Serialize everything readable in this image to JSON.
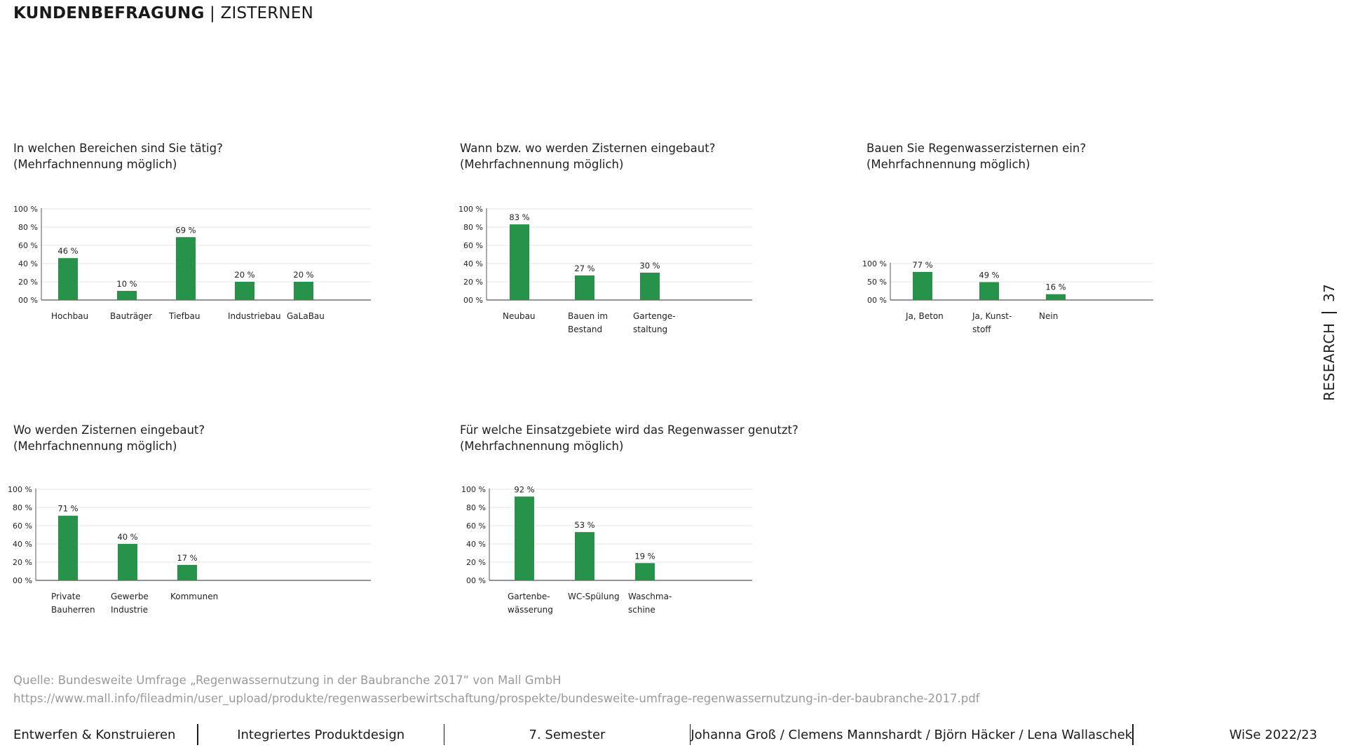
{
  "header": {
    "title_bold": "KUNDENBEFRAGUNG",
    "separator": " | ",
    "title_light": "ZISTERNEN"
  },
  "side": {
    "label": "RESEARCH",
    "page_number": "37"
  },
  "colors": {
    "bar": "#27934a",
    "grid": "#e5e5e5",
    "axis": "#555555"
  },
  "chart_data": [
    {
      "type": "bar",
      "title": "In welchen Bereichen sind Sie tätig?",
      "subtitle": "(Mehrfachnennung möglich)",
      "categories": [
        "Hochbau",
        "Bauträger",
        "Tiefbau",
        "Industriebau",
        "GaLaBau"
      ],
      "values": [
        46,
        10,
        69,
        20,
        20
      ],
      "data_labels": [
        "46 %",
        "10 %",
        "69 %",
        "20 %",
        "20 %"
      ],
      "ylim": [
        0,
        100
      ],
      "y_ticks": [
        0,
        20,
        40,
        60,
        80,
        100
      ],
      "y_tick_labels": [
        "00 %",
        "20 %",
        "40 %",
        "60 %",
        "80 %",
        "100 %"
      ],
      "grid": true
    },
    {
      "type": "bar",
      "title": "Wann bzw. wo werden Zisternen eingebaut?",
      "subtitle": "(Mehrfachnennung möglich)",
      "categories": [
        "Neubau",
        "Bauen im\nBestand",
        "Gartenge-\nstaltung"
      ],
      "values": [
        83,
        27,
        30
      ],
      "data_labels": [
        "83 %",
        "27 %",
        "30 %"
      ],
      "ylim": [
        0,
        100
      ],
      "y_ticks": [
        0,
        20,
        40,
        60,
        80,
        100
      ],
      "y_tick_labels": [
        "00 %",
        "20 %",
        "40 %",
        "60 %",
        "80 %",
        "100 %"
      ],
      "grid": true
    },
    {
      "type": "bar",
      "title": "Bauen Sie Regenwasserzisternen ein?",
      "subtitle": "(Mehrfachnennung möglich)",
      "categories": [
        "Ja, Beton",
        "Ja, Kunst-\nstoff",
        "Nein"
      ],
      "values": [
        77,
        49,
        16
      ],
      "data_labels": [
        "77 %",
        "49 %",
        "16 %"
      ],
      "ylim": [
        0,
        100
      ],
      "y_ticks": [
        0,
        50,
        100
      ],
      "y_tick_labels": [
        "00 %",
        "50 %",
        "100 %"
      ],
      "grid": true
    },
    {
      "type": "bar",
      "title": "Wo werden Zisternen eingebaut?",
      "subtitle": "(Mehrfachnennung möglich)",
      "categories": [
        "Private\nBauherren",
        "Gewerbe\nIndustrie",
        "Kommunen"
      ],
      "values": [
        71,
        40,
        17
      ],
      "data_labels": [
        "71 %",
        "40 %",
        "17 %"
      ],
      "ylim": [
        0,
        100
      ],
      "y_ticks": [
        0,
        20,
        40,
        60,
        80,
        100
      ],
      "y_tick_labels": [
        "00 %",
        "20 %",
        "40 %",
        "60 %",
        "80 %",
        "100 %"
      ],
      "grid": true
    },
    {
      "type": "bar",
      "title": "Für welche Einsatzgebiete wird das Regenwasser genutzt?",
      "subtitle": "(Mehrfachnennung möglich)",
      "categories": [
        "Gartenbe-\nwässerung",
        "WC-Spülung",
        "Waschma-\nschine"
      ],
      "values": [
        92,
        53,
        19
      ],
      "data_labels": [
        "92 %",
        "53 %",
        "19 %"
      ],
      "ylim": [
        0,
        100
      ],
      "y_ticks": [
        0,
        20,
        40,
        60,
        80,
        100
      ],
      "y_tick_labels": [
        "00 %",
        "20 %",
        "40 %",
        "60 %",
        "80 %",
        "100 %"
      ],
      "grid": true
    }
  ],
  "source": {
    "line1": "Quelle: Bundesweite Umfrage „Regenwassernutzung in der Baubranche 2017“ von Mall GmbH",
    "line2": "https://www.mall.info/fileadmin/user_upload/produkte/regenwasserbewirtschaftung/prospekte/bundesweite-umfrage-regenwassernutzung-in-der-baubranche-2017.pdf"
  },
  "footer": {
    "items": [
      "Entwerfen & Konstruieren",
      "Integriertes Produktdesign",
      "7. Semester",
      "Johanna Groß / Clemens Mannshardt / Björn Häcker / Lena Wallaschek",
      "WiSe 2022/23"
    ]
  }
}
